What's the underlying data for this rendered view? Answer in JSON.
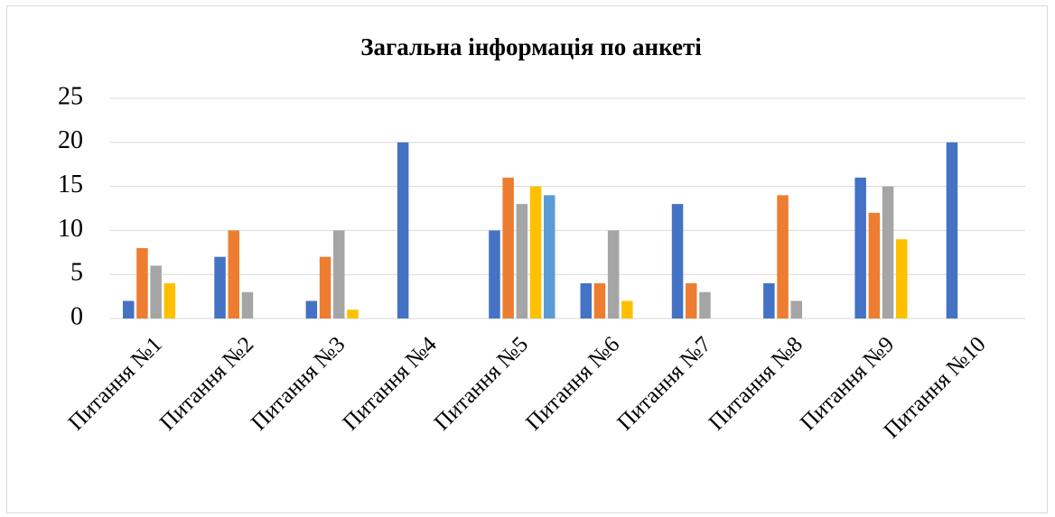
{
  "chart_data": {
    "type": "bar",
    "title": "Загальна інформація по анкеті",
    "categories": [
      "Питання №1",
      "Питання №2",
      "Питання №3",
      "Питання №4",
      "Питання №5",
      "Питання №6",
      "Питання №7",
      "Питання №8",
      "Питання №9",
      "Питання №10"
    ],
    "series": [
      {
        "color": "#4472c4",
        "values": [
          2,
          7,
          2,
          20,
          10,
          4,
          13,
          4,
          16,
          20
        ]
      },
      {
        "color": "#ed7d31",
        "values": [
          8,
          10,
          7,
          0,
          16,
          4,
          4,
          14,
          12,
          0
        ]
      },
      {
        "color": "#a5a5a5",
        "values": [
          6,
          3,
          10,
          0,
          13,
          10,
          3,
          2,
          15,
          0
        ]
      },
      {
        "color": "#ffc000",
        "values": [
          4,
          0,
          1,
          0,
          15,
          2,
          0,
          0,
          9,
          0
        ]
      },
      {
        "color": "#5b9bd5",
        "values": [
          0,
          0,
          0,
          0,
          14,
          0,
          0,
          0,
          0,
          0
        ]
      }
    ],
    "ylim": [
      0,
      25
    ],
    "yticks": [
      0,
      5,
      10,
      15,
      20,
      25
    ],
    "grid": true
  }
}
